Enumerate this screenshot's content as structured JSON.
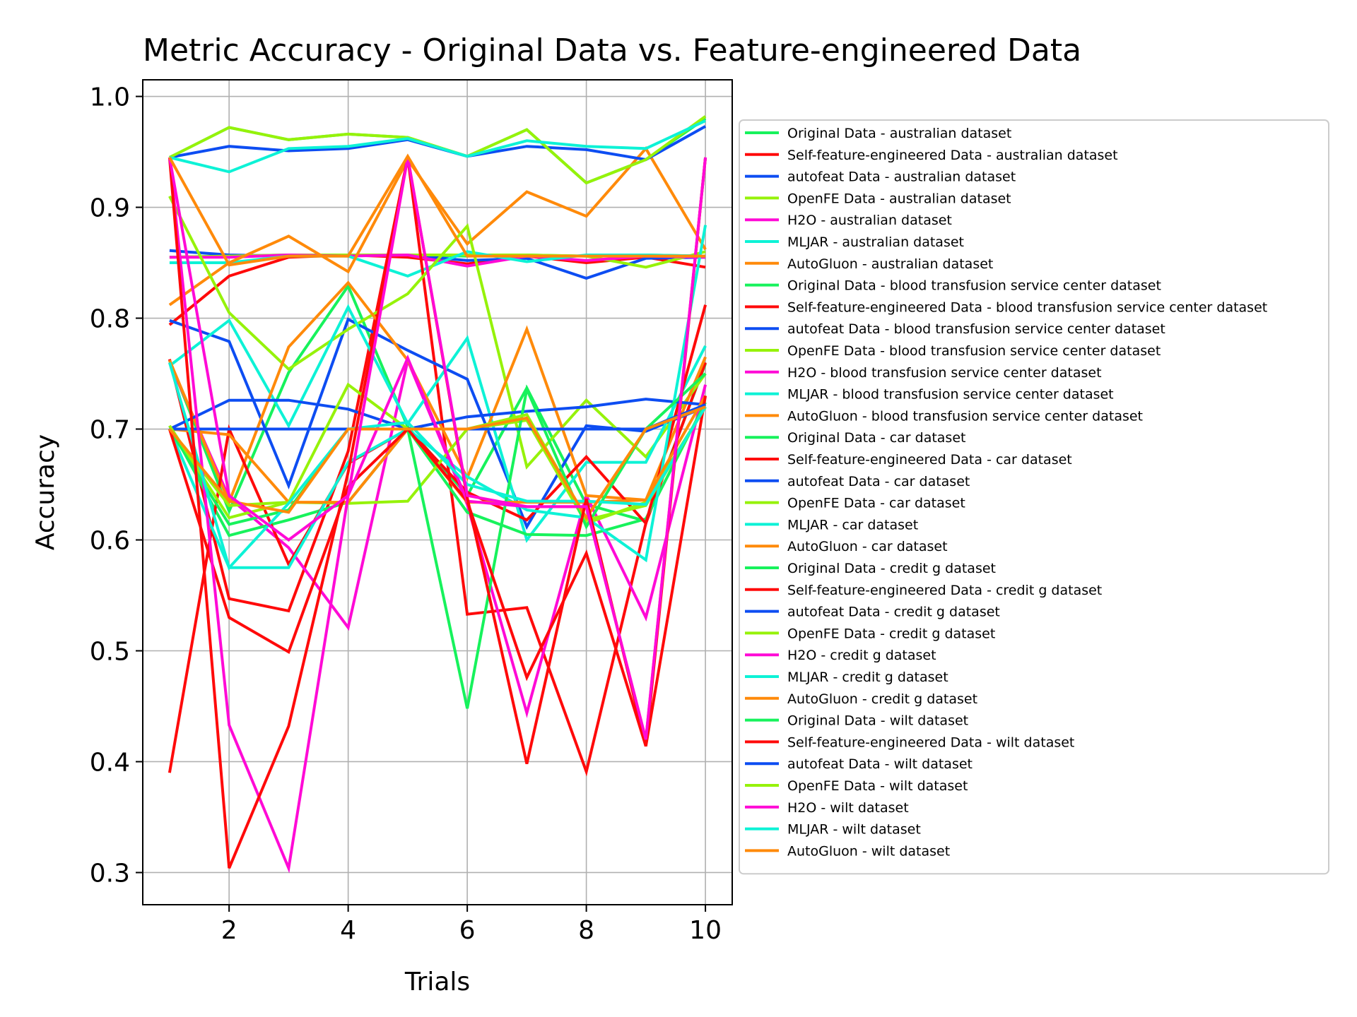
{
  "chart_data": {
    "type": "line",
    "title": "Metric Accuracy - Original Data vs. Feature-engineered Data",
    "xlabel": "Trials",
    "ylabel": "Accuracy",
    "xlim": [
      0.55,
      10.45
    ],
    "ylim": [
      0.271,
      1.015
    ],
    "xticks": [
      2,
      4,
      6,
      8,
      10
    ],
    "yticks": [
      0.3,
      0.4,
      0.5,
      0.6,
      0.7,
      0.8,
      0.9,
      1.0
    ],
    "xtick_labels": [
      "2",
      "4",
      "6",
      "8",
      "10"
    ],
    "ytick_labels": [
      "0.3",
      "0.4",
      "0.5",
      "0.6",
      "0.7",
      "0.8",
      "0.9",
      "1.0"
    ],
    "grid": true,
    "legend_position": "right, outside plot",
    "x": [
      1,
      2,
      3,
      4,
      5,
      6,
      7,
      8,
      9,
      10
    ],
    "series": [
      {
        "name": "Original Data - australian dataset",
        "color": "#17f25c",
        "values": [
          0.855,
          0.856,
          0.857,
          0.857,
          0.857,
          0.856,
          0.857,
          0.856,
          0.857,
          0.856
        ]
      },
      {
        "name": "Self-feature-engineered Data - australian dataset",
        "color": "#ff0a0a",
        "values": [
          0.794,
          0.838,
          0.855,
          0.857,
          0.855,
          0.849,
          0.856,
          0.85,
          0.855,
          0.846
        ]
      },
      {
        "name": "autofeat Data - australian dataset",
        "color": "#0d4df2",
        "values": [
          0.861,
          0.857,
          0.856,
          0.857,
          0.857,
          0.852,
          0.854,
          0.836,
          0.854,
          0.855
        ]
      },
      {
        "name": "OpenFE Data - australian dataset",
        "color": "#96f20a",
        "values": [
          0.855,
          0.856,
          0.857,
          0.857,
          0.857,
          0.857,
          0.857,
          0.856,
          0.846,
          0.86
        ]
      },
      {
        "name": "H2O - australian dataset",
        "color": "#ff0ad6",
        "values": [
          0.855,
          0.855,
          0.857,
          0.856,
          0.857,
          0.847,
          0.856,
          0.852,
          0.856,
          0.855
        ]
      },
      {
        "name": "MLJAR - australian dataset",
        "color": "#0df2d6",
        "values": [
          0.85,
          0.85,
          0.856,
          0.856,
          0.838,
          0.86,
          0.851,
          0.857,
          0.857,
          0.856
        ]
      },
      {
        "name": "AutoGluon - australian dataset",
        "color": "#ff8a0a",
        "values": [
          0.812,
          0.85,
          0.874,
          0.842,
          0.943,
          0.867,
          0.914,
          0.892,
          0.953,
          0.862
        ]
      },
      {
        "name": "Original Data - blood transfusion service center dataset",
        "color": "#17f25c",
        "values": [
          0.762,
          0.626,
          0.751,
          0.829,
          0.702,
          0.64,
          0.737,
          0.632,
          0.617,
          0.759
        ]
      },
      {
        "name": "Self-feature-engineered Data - blood transfusion service center dataset",
        "color": "#ff0a0a",
        "values": [
          0.763,
          0.547,
          0.536,
          0.68,
          0.945,
          0.533,
          0.539,
          0.391,
          0.615,
          0.76
        ]
      },
      {
        "name": "autofeat Data - blood transfusion service center dataset",
        "color": "#0d4df2",
        "values": [
          0.798,
          0.779,
          0.649,
          0.799,
          0.771,
          0.745,
          0.612,
          0.703,
          0.698,
          0.72
        ]
      },
      {
        "name": "OpenFE Data - blood transfusion service center dataset",
        "color": "#96f20a",
        "values": [
          0.91,
          0.805,
          0.754,
          0.79,
          0.822,
          0.883,
          0.666,
          0.726,
          0.675,
          0.75
        ]
      },
      {
        "name": "H2O - blood transfusion service center dataset",
        "color": "#ff0ad6",
        "values": [
          0.76,
          0.638,
          0.593,
          0.521,
          0.762,
          0.632,
          0.444,
          0.64,
          0.53,
          0.74
        ]
      },
      {
        "name": "MLJAR - blood transfusion service center dataset",
        "color": "#0df2d6",
        "values": [
          0.757,
          0.798,
          0.703,
          0.81,
          0.705,
          0.782,
          0.6,
          0.67,
          0.67,
          0.775
        ]
      },
      {
        "name": "AutoGluon - blood transfusion service center dataset",
        "color": "#ff8a0a",
        "values": [
          0.762,
          0.634,
          0.774,
          0.832,
          0.762,
          0.656,
          0.79,
          0.64,
          0.636,
          0.765
        ]
      },
      {
        "name": "Original Data - car dataset",
        "color": "#17f25c",
        "values": [
          0.703,
          0.604,
          0.618,
          0.634,
          0.7,
          0.625,
          0.605,
          0.604,
          0.619,
          0.724
        ]
      },
      {
        "name": "Self-feature-engineered Data - car dataset",
        "color": "#ff0a0a",
        "values": [
          0.39,
          0.7,
          0.578,
          0.669,
          0.7,
          0.643,
          0.618,
          0.675,
          0.615,
          0.812
        ]
      },
      {
        "name": "autofeat Data - car dataset",
        "color": "#0d4df2",
        "values": [
          0.7,
          0.726,
          0.726,
          0.718,
          0.7,
          0.711,
          0.716,
          0.72,
          0.727,
          0.722
        ]
      },
      {
        "name": "OpenFE Data - car dataset",
        "color": "#96f20a",
        "values": [
          0.7,
          0.631,
          0.634,
          0.633,
          0.635,
          0.7,
          0.708,
          0.615,
          0.634,
          0.72
        ]
      },
      {
        "name": "MLJAR - car dataset",
        "color": "#0df2d6",
        "values": [
          0.7,
          0.575,
          0.575,
          0.67,
          0.7,
          0.657,
          0.627,
          0.62,
          0.582,
          0.884
        ]
      },
      {
        "name": "AutoGluon - car dataset",
        "color": "#ff8a0a",
        "values": [
          0.7,
          0.695,
          0.634,
          0.634,
          0.7,
          0.634,
          0.634,
          0.634,
          0.636,
          0.73
        ]
      },
      {
        "name": "Original Data - credit g dataset",
        "color": "#17f25c",
        "values": [
          0.7,
          0.614,
          0.627,
          0.7,
          0.7,
          0.448,
          0.736,
          0.612,
          0.7,
          0.75
        ]
      },
      {
        "name": "Self-feature-engineered Data - credit g dataset",
        "color": "#ff0a0a",
        "values": [
          0.7,
          0.53,
          0.499,
          0.648,
          0.7,
          0.635,
          0.476,
          0.588,
          0.414,
          0.73
        ]
      },
      {
        "name": "autofeat Data - credit g dataset",
        "color": "#0d4df2",
        "values": [
          0.7,
          0.7,
          0.7,
          0.7,
          0.7,
          0.7,
          0.7,
          0.7,
          0.7,
          0.722
        ]
      },
      {
        "name": "OpenFE Data - credit g dataset",
        "color": "#96f20a",
        "values": [
          0.703,
          0.62,
          0.634,
          0.74,
          0.7,
          0.7,
          0.713,
          0.618,
          0.631,
          0.72
        ]
      },
      {
        "name": "H2O - credit g dataset",
        "color": "#ff0ad6",
        "values": [
          0.945,
          0.433,
          0.304,
          0.64,
          0.764,
          0.635,
          0.63,
          0.63,
          0.42,
          0.945
        ]
      },
      {
        "name": "MLJAR - credit g dataset",
        "color": "#0df2d6",
        "values": [
          0.76,
          0.575,
          0.633,
          0.7,
          0.706,
          0.65,
          0.635,
          0.635,
          0.632,
          0.72
        ]
      },
      {
        "name": "AutoGluon - credit g dataset",
        "color": "#ff8a0a",
        "values": [
          0.7,
          0.635,
          0.625,
          0.7,
          0.7,
          0.7,
          0.71,
          0.62,
          0.7,
          0.72
        ]
      },
      {
        "name": "Original Data - wilt dataset",
        "color": "#17f25c",
        "values": [
          0.945,
          0.972,
          0.961,
          0.966,
          0.963,
          0.946,
          0.97,
          0.922,
          0.943,
          0.98
        ]
      },
      {
        "name": "Self-feature-engineered Data - wilt dataset",
        "color": "#ff0a0a",
        "values": [
          0.945,
          0.304,
          0.432,
          0.661,
          0.945,
          0.638,
          0.398,
          0.637,
          0.414,
          0.945
        ]
      },
      {
        "name": "autofeat Data - wilt dataset",
        "color": "#0d4df2",
        "values": [
          0.945,
          0.955,
          0.951,
          0.953,
          0.961,
          0.946,
          0.955,
          0.952,
          0.943,
          0.973
        ]
      },
      {
        "name": "OpenFE Data - wilt dataset",
        "color": "#96f20a",
        "values": [
          0.945,
          0.972,
          0.961,
          0.966,
          0.963,
          0.946,
          0.97,
          0.922,
          0.943,
          0.982
        ]
      },
      {
        "name": "H2O - wilt dataset",
        "color": "#ff0ad6",
        "values": [
          0.945,
          0.64,
          0.6,
          0.64,
          0.945,
          0.64,
          0.63,
          0.63,
          0.42,
          0.945
        ]
      },
      {
        "name": "MLJAR - wilt dataset",
        "color": "#0df2d6",
        "values": [
          0.945,
          0.932,
          0.953,
          0.955,
          0.962,
          0.946,
          0.96,
          0.955,
          0.953,
          0.978
        ]
      },
      {
        "name": "AutoGluon - wilt dataset",
        "color": "#ff8a0a",
        "values": [
          0.945,
          0.848,
          0.856,
          0.856,
          0.946,
          0.856,
          0.856,
          0.856,
          0.856,
          0.856
        ]
      }
    ]
  }
}
